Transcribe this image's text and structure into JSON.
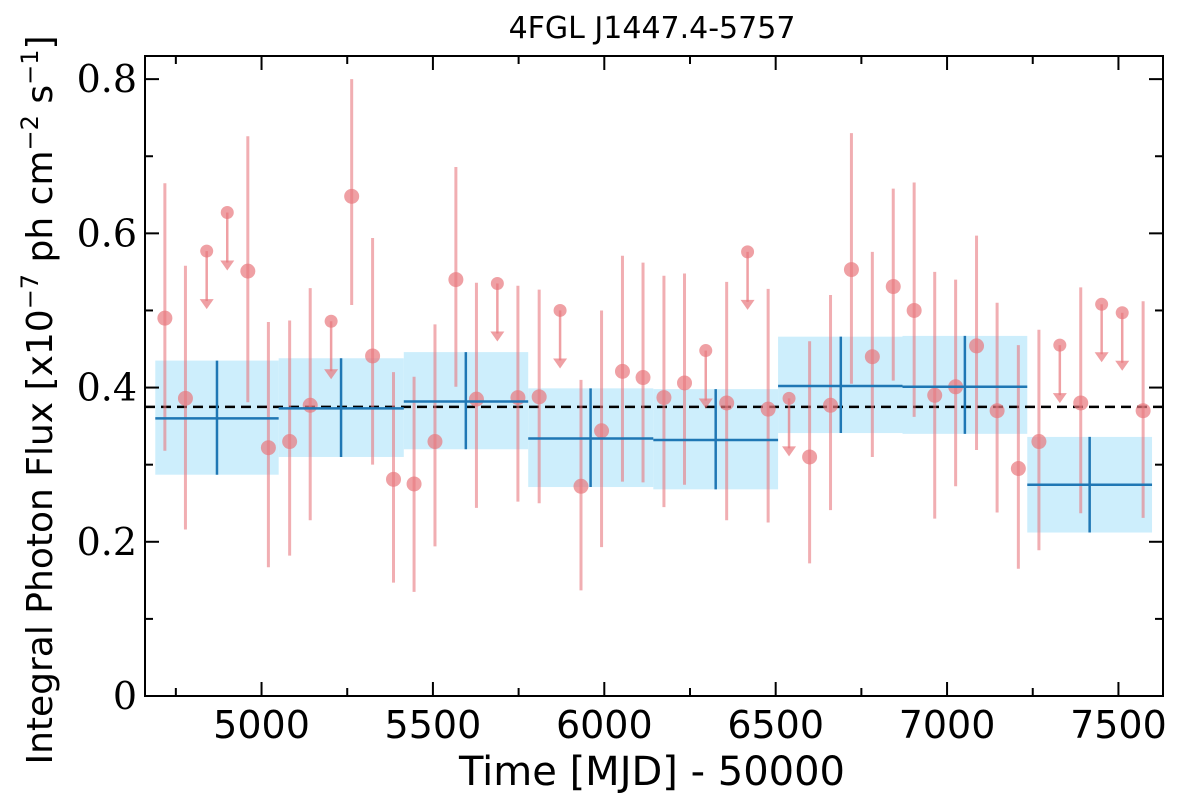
{
  "chart_data": {
    "type": "scatter",
    "title": "4FGL J1447.4-5757",
    "xlabel": "Time [MJD] - 50000",
    "ylabel": "Integral Photon Flux [x10",
    "ylabel_exp": "−7",
    "ylabel_mid": " ph cm",
    "ylabel_exp2": "−2",
    "ylabel_mid2": " s",
    "ylabel_exp3": "−1",
    "ylabel_end": "]",
    "xlim": [
      4660,
      7630
    ],
    "ylim": [
      0,
      0.83
    ],
    "xticks": [
      {
        "value": 5000,
        "label": "5000"
      },
      {
        "value": 5500,
        "label": "5500"
      },
      {
        "value": 6000,
        "label": "6000"
      },
      {
        "value": 6500,
        "label": "6500"
      },
      {
        "value": 7000,
        "label": "7000"
      },
      {
        "value": 7500,
        "label": "7500"
      }
    ],
    "yticks": [
      {
        "value": 0,
        "label": "0"
      },
      {
        "value": 0.2,
        "label": "0.2"
      },
      {
        "value": 0.4,
        "label": "0.4"
      },
      {
        "value": 0.6,
        "label": "0.6"
      },
      {
        "value": 0.8,
        "label": "0.8"
      }
    ],
    "mean_flux": 0.375,
    "colors": {
      "fine_points": "#e8787e",
      "coarse_bins": "#1f77b4",
      "coarse_band": "#cdeefc",
      "mean_line": "#000000"
    },
    "coarse_bins": [
      {
        "x_start": 4690,
        "x_end": 5050,
        "x": 4870,
        "y": 0.36,
        "y_low": 0.287,
        "y_high": 0.435
      },
      {
        "x_start": 5050,
        "x_end": 5415,
        "x": 5232,
        "y": 0.373,
        "y_low": 0.31,
        "y_high": 0.438
      },
      {
        "x_start": 5415,
        "x_end": 5778,
        "x": 5596,
        "y": 0.382,
        "y_low": 0.32,
        "y_high": 0.446
      },
      {
        "x_start": 5778,
        "x_end": 6143,
        "x": 5960,
        "y": 0.334,
        "y_low": 0.271,
        "y_high": 0.399
      },
      {
        "x_start": 6143,
        "x_end": 6507,
        "x": 6325,
        "y": 0.332,
        "y_low": 0.268,
        "y_high": 0.398
      },
      {
        "x_start": 6507,
        "x_end": 6870,
        "x": 6690,
        "y": 0.402,
        "y_low": 0.341,
        "y_high": 0.466
      },
      {
        "x_start": 6870,
        "x_end": 7234,
        "x": 7052,
        "y": 0.401,
        "y_low": 0.34,
        "y_high": 0.467
      },
      {
        "x_start": 7234,
        "x_end": 7598,
        "x": 7416,
        "y": 0.274,
        "y_low": 0.212,
        "y_high": 0.336
      }
    ],
    "fine_points": [
      {
        "x": 4718,
        "y": 0.49,
        "y_low": 0.318,
        "y_high": 0.665
      },
      {
        "x": 4778,
        "y": 0.386,
        "y_low": 0.216,
        "y_high": 0.558
      },
      {
        "x": 4840,
        "y": 0.577,
        "upper_limit": true
      },
      {
        "x": 4900,
        "y": 0.627,
        "upper_limit": true
      },
      {
        "x": 4960,
        "y": 0.551,
        "y_low": 0.381,
        "y_high": 0.726
      },
      {
        "x": 5020,
        "y": 0.322,
        "y_low": 0.167,
        "y_high": 0.485
      },
      {
        "x": 5082,
        "y": 0.33,
        "y_low": 0.182,
        "y_high": 0.487
      },
      {
        "x": 5142,
        "y": 0.377,
        "y_low": 0.228,
        "y_high": 0.529
      },
      {
        "x": 5203,
        "y": 0.486,
        "upper_limit": true
      },
      {
        "x": 5263,
        "y": 0.648,
        "y_low": 0.507,
        "y_high": 0.8
      },
      {
        "x": 5324,
        "y": 0.441,
        "y_low": 0.3,
        "y_high": 0.594
      },
      {
        "x": 5385,
        "y": 0.281,
        "y_low": 0.147,
        "y_high": 0.42
      },
      {
        "x": 5445,
        "y": 0.275,
        "y_low": 0.135,
        "y_high": 0.414
      },
      {
        "x": 5506,
        "y": 0.33,
        "y_low": 0.194,
        "y_high": 0.482
      },
      {
        "x": 5567,
        "y": 0.54,
        "y_low": 0.401,
        "y_high": 0.686
      },
      {
        "x": 5627,
        "y": 0.385,
        "y_low": 0.244,
        "y_high": 0.536
      },
      {
        "x": 5688,
        "y": 0.535,
        "upper_limit": true
      },
      {
        "x": 5748,
        "y": 0.387,
        "y_low": 0.252,
        "y_high": 0.532
      },
      {
        "x": 5810,
        "y": 0.388,
        "y_low": 0.25,
        "y_high": 0.527
      },
      {
        "x": 5871,
        "y": 0.5,
        "upper_limit": true
      },
      {
        "x": 5932,
        "y": 0.272,
        "y_low": 0.137,
        "y_high": 0.41
      },
      {
        "x": 5992,
        "y": 0.344,
        "y_low": 0.193,
        "y_high": 0.5
      },
      {
        "x": 6053,
        "y": 0.421,
        "y_low": 0.278,
        "y_high": 0.571
      },
      {
        "x": 6113,
        "y": 0.413,
        "y_low": 0.277,
        "y_high": 0.562
      },
      {
        "x": 6174,
        "y": 0.387,
        "y_low": 0.245,
        "y_high": 0.545
      },
      {
        "x": 6234,
        "y": 0.406,
        "y_low": 0.274,
        "y_high": 0.548
      },
      {
        "x": 6296,
        "y": 0.448,
        "upper_limit": true
      },
      {
        "x": 6357,
        "y": 0.38,
        "y_low": 0.228,
        "y_high": 0.537
      },
      {
        "x": 6418,
        "y": 0.576,
        "upper_limit": true
      },
      {
        "x": 6478,
        "y": 0.372,
        "y_low": 0.225,
        "y_high": 0.528
      },
      {
        "x": 6539,
        "y": 0.386,
        "upper_limit": true
      },
      {
        "x": 6599,
        "y": 0.31,
        "y_low": 0.172,
        "y_high": 0.46
      },
      {
        "x": 6660,
        "y": 0.377,
        "y_low": 0.241,
        "y_high": 0.52
      },
      {
        "x": 6721,
        "y": 0.553,
        "y_low": 0.405,
        "y_high": 0.73
      },
      {
        "x": 6782,
        "y": 0.44,
        "y_low": 0.31,
        "y_high": 0.576
      },
      {
        "x": 6843,
        "y": 0.531,
        "y_low": 0.409,
        "y_high": 0.658
      },
      {
        "x": 6904,
        "y": 0.5,
        "y_low": 0.362,
        "y_high": 0.666
      },
      {
        "x": 6964,
        "y": 0.39,
        "y_low": 0.23,
        "y_high": 0.55
      },
      {
        "x": 7025,
        "y": 0.401,
        "y_low": 0.272,
        "y_high": 0.54
      },
      {
        "x": 7086,
        "y": 0.454,
        "y_low": 0.319,
        "y_high": 0.597
      },
      {
        "x": 7146,
        "y": 0.37,
        "y_low": 0.238,
        "y_high": 0.51
      },
      {
        "x": 7208,
        "y": 0.295,
        "y_low": 0.165,
        "y_high": 0.455
      },
      {
        "x": 7268,
        "y": 0.33,
        "y_low": 0.189,
        "y_high": 0.475
      },
      {
        "x": 7329,
        "y": 0.455,
        "upper_limit": true
      },
      {
        "x": 7390,
        "y": 0.38,
        "y_low": 0.237,
        "y_high": 0.53
      },
      {
        "x": 7451,
        "y": 0.508,
        "upper_limit": true
      },
      {
        "x": 7511,
        "y": 0.497,
        "upper_limit": true
      },
      {
        "x": 7572,
        "y": 0.37,
        "y_low": 0.231,
        "y_high": 0.512
      }
    ]
  }
}
